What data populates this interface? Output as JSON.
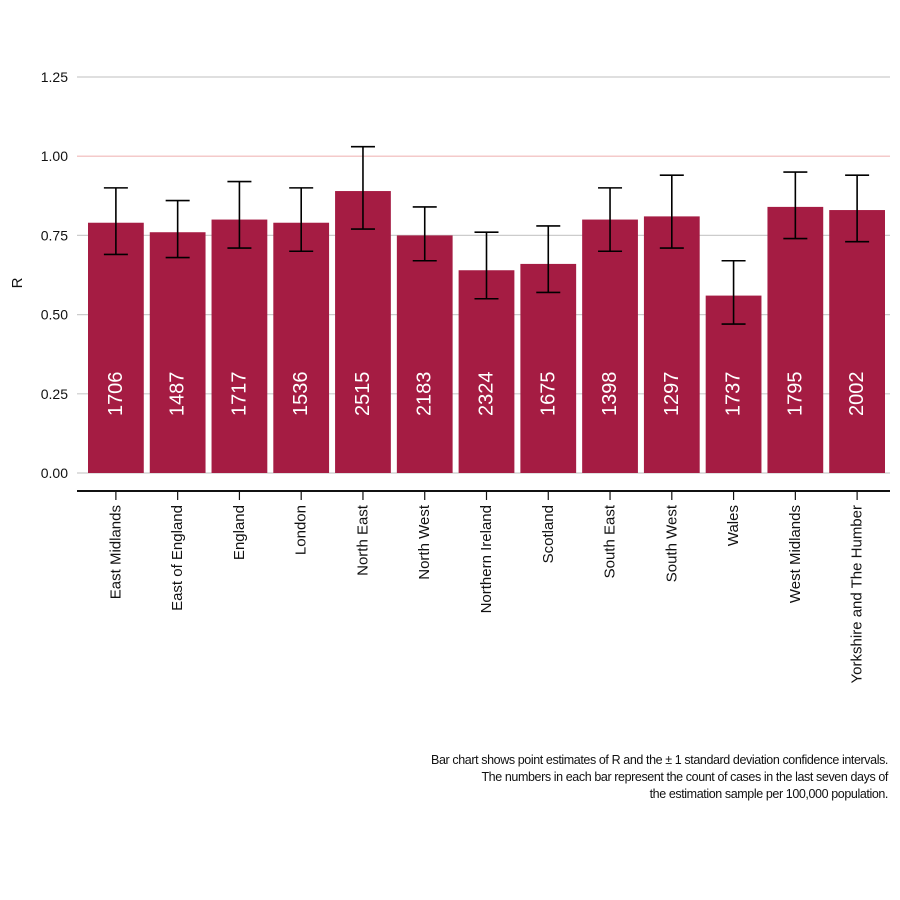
{
  "chart_data": {
    "type": "bar",
    "ylabel": "R",
    "xlabel": "",
    "ylim": [
      0,
      1.25
    ],
    "yticks": [
      "0.00",
      "0.25",
      "0.50",
      "0.75",
      "1.00",
      "1.25"
    ],
    "reference_line": 1.0,
    "grid": true,
    "categories": [
      "East Midlands",
      "East of England",
      "England",
      "London",
      "North East",
      "North West",
      "Northern Ireland",
      "Scotland",
      "South East",
      "South West",
      "Wales",
      "West Midlands",
      "Yorkshire and The Humber"
    ],
    "values": [
      0.79,
      0.76,
      0.8,
      0.79,
      0.89,
      0.75,
      0.64,
      0.66,
      0.8,
      0.81,
      0.56,
      0.84,
      0.83
    ],
    "error_low": [
      0.69,
      0.68,
      0.71,
      0.7,
      0.77,
      0.67,
      0.55,
      0.57,
      0.7,
      0.71,
      0.47,
      0.74,
      0.73
    ],
    "error_high": [
      0.9,
      0.86,
      0.92,
      0.9,
      1.03,
      0.84,
      0.76,
      0.78,
      0.9,
      0.94,
      0.67,
      0.95,
      0.94
    ],
    "bar_labels": [
      "1706",
      "1487",
      "1717",
      "1536",
      "2515",
      "2183",
      "2324",
      "1675",
      "1398",
      "1297",
      "1737",
      "1795",
      "2002"
    ],
    "colors": {
      "bar": "#a51c43",
      "grid": "#cccccc",
      "reference": "#f0b8b8",
      "axis": "#111111",
      "bar_label": "#ffffff"
    }
  },
  "note": {
    "line1": "Bar chart shows point estimates of R and the ± 1 standard deviation confidence intervals.",
    "line2": "The numbers in each bar represent the count of cases in the last seven days of",
    "line3": "the estimation sample per 100,000 population."
  }
}
